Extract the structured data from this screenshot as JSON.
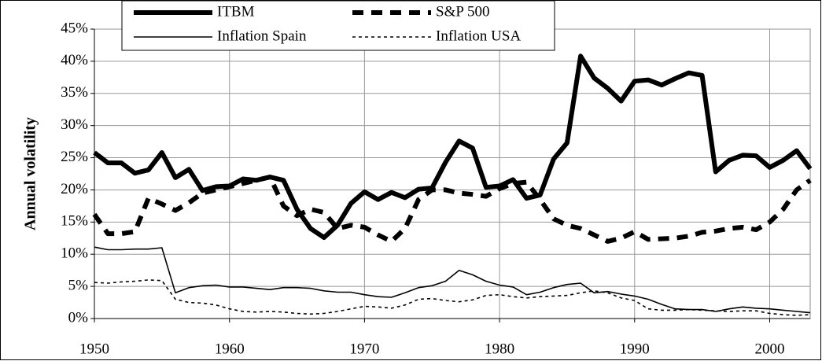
{
  "chart_data": {
    "type": "line",
    "y_label": "Annual volatility",
    "x": [
      1950,
      1951,
      1952,
      1953,
      1954,
      1955,
      1956,
      1957,
      1958,
      1959,
      1960,
      1961,
      1962,
      1963,
      1964,
      1965,
      1966,
      1967,
      1968,
      1969,
      1970,
      1971,
      1972,
      1973,
      1974,
      1975,
      1976,
      1977,
      1978,
      1979,
      1980,
      1981,
      1982,
      1983,
      1984,
      1985,
      1986,
      1987,
      1988,
      1989,
      1990,
      1991,
      1992,
      1993,
      1994,
      1995,
      1996,
      1997,
      1998,
      1999,
      2000,
      2001,
      2002,
      2003
    ],
    "xlim": [
      1950,
      2003
    ],
    "xticks": [
      1950,
      1960,
      1970,
      1980,
      1990,
      2000
    ],
    "ylim": [
      0,
      45
    ],
    "yticks": [
      {
        "value": 0,
        "label": "0%"
      },
      {
        "value": 5,
        "label": "5%"
      },
      {
        "value": 10,
        "label": "10%"
      },
      {
        "value": 15,
        "label": "15%"
      },
      {
        "value": 20,
        "label": "20%"
      },
      {
        "value": 25,
        "label": "25%"
      },
      {
        "value": 30,
        "label": "30%"
      },
      {
        "value": 35,
        "label": "35%"
      },
      {
        "value": 40,
        "label": "40%"
      },
      {
        "value": 45,
        "label": "45%"
      }
    ],
    "grid": true,
    "legend": "top",
    "series": [
      {
        "name": "ITBM",
        "color": "#000000",
        "style": "solid",
        "weight": "thick",
        "values": [
          25.8,
          24.2,
          24.2,
          22.6,
          23.1,
          25.8,
          21.9,
          23.2,
          19.9,
          20.5,
          20.6,
          21.7,
          21.5,
          22.0,
          21.5,
          17.0,
          14.0,
          12.6,
          14.5,
          17.9,
          19.7,
          18.5,
          19.6,
          18.8,
          20.1,
          20.3,
          24.3,
          27.6,
          26.5,
          20.4,
          20.6,
          21.6,
          18.7,
          19.2,
          24.8,
          27.3,
          40.8,
          37.4,
          35.8,
          33.8,
          36.9,
          37.1,
          36.3,
          37.3,
          38.2,
          37.8,
          22.8,
          24.6,
          25.4,
          25.3,
          23.5,
          24.6,
          26.1,
          23.3
        ]
      },
      {
        "name": "S&P 500",
        "color": "#000000",
        "style": "dashed",
        "weight": "thick",
        "values": [
          16.2,
          13.2,
          13.2,
          13.5,
          18.7,
          17.8,
          16.8,
          18.0,
          19.5,
          20.0,
          20.5,
          21.0,
          21.5,
          22.0,
          17.5,
          16.0,
          17.0,
          16.5,
          14.0,
          14.5,
          14.2,
          13.0,
          12.0,
          14.0,
          18.5,
          20.0,
          20.0,
          19.5,
          19.3,
          19.0,
          20.2,
          21.0,
          21.2,
          18.5,
          15.5,
          14.5,
          14.0,
          13.0,
          12.0,
          12.5,
          13.5,
          12.3,
          12.4,
          12.5,
          12.8,
          13.4,
          13.6,
          14.0,
          14.2,
          13.8,
          15.0,
          17.0,
          20.0,
          21.5
        ]
      },
      {
        "name": "Inflation Spain",
        "color": "#000000",
        "style": "solid",
        "weight": "thin",
        "values": [
          11.1,
          10.7,
          10.7,
          10.8,
          10.8,
          11.0,
          4.0,
          4.8,
          5.1,
          5.2,
          4.9,
          4.9,
          4.7,
          4.5,
          4.8,
          4.8,
          4.7,
          4.3,
          4.1,
          4.1,
          3.7,
          3.4,
          3.3,
          4.0,
          4.8,
          5.1,
          5.8,
          7.5,
          6.8,
          5.8,
          5.2,
          4.9,
          3.7,
          4.1,
          4.8,
          5.3,
          5.5,
          4.0,
          4.2,
          3.8,
          3.5,
          3.0,
          2.2,
          1.5,
          1.4,
          1.4,
          1.1,
          1.5,
          1.8,
          1.6,
          1.5,
          1.3,
          1.1,
          0.9
        ]
      },
      {
        "name": "Inflation USA",
        "color": "#000000",
        "style": "dotted",
        "weight": "thin",
        "values": [
          5.6,
          5.5,
          5.7,
          5.8,
          6.0,
          5.9,
          3.0,
          2.5,
          2.4,
          2.1,
          1.5,
          1.1,
          1.0,
          1.1,
          1.0,
          0.8,
          0.7,
          0.8,
          1.1,
          1.5,
          1.9,
          1.8,
          1.6,
          2.1,
          3.0,
          3.1,
          2.8,
          2.6,
          2.9,
          3.6,
          3.7,
          3.4,
          3.2,
          3.4,
          3.5,
          3.6,
          4.0,
          4.3,
          4.0,
          3.2,
          2.8,
          1.5,
          1.3,
          1.3,
          1.4,
          1.3,
          1.2,
          1.1,
          1.2,
          1.2,
          0.8,
          0.6,
          0.5,
          0.6
        ]
      }
    ]
  }
}
